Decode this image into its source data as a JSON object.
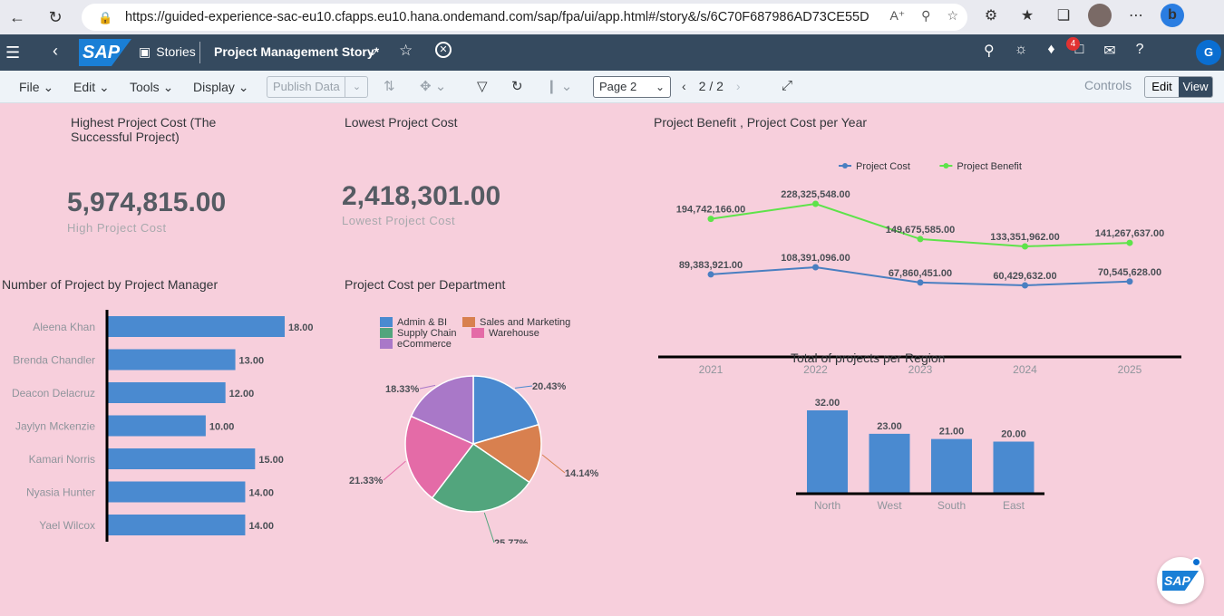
{
  "browser": {
    "url": "https://guided-experience-sac-eu10.cfapps.eu10.hana.ondemand.com/sap/fpa/ui/app.html#/story&/s/6C70F687986AD73CE55DA..."
  },
  "shell": {
    "logo_text": "SAP",
    "stories_label": "Stories",
    "story_title": "Project Management Story*",
    "notification_count": "4",
    "user_initial": "G"
  },
  "toolbar": {
    "file": "File",
    "edit": "Edit",
    "tools": "Tools",
    "display": "Display",
    "publish_data": "Publish Data",
    "page_select": "Page 2",
    "page_counter": "2 / 2",
    "controls": "Controls",
    "edit_btn": "Edit",
    "view_btn": "View"
  },
  "kpis": [
    {
      "title": "Highest Project Cost (The Successful Project)",
      "value": "5,974,815.00",
      "sub": "High Project Cost"
    },
    {
      "title": "Lowest Project Cost",
      "value": "2,418,301.00",
      "sub": "Lowest Project Cost"
    }
  ],
  "chart_data": [
    {
      "type": "line",
      "title": "Project Benefit , Project Cost per Year",
      "x": [
        "2021",
        "2022",
        "2023",
        "2024",
        "2025"
      ],
      "series": [
        {
          "name": "Project Cost",
          "color": "#4a7fc1",
          "values": [
            89383921.0,
            108391096.0,
            67860451.0,
            60429632.0,
            70545628.0
          ],
          "labels": [
            "89,383,921.00",
            "108,391,096.00",
            "67,860,451.00",
            "60,429,632.00",
            "70,545,628.00"
          ]
        },
        {
          "name": "Project Benefit",
          "color": "#5ee34a",
          "values": [
            194742166.0,
            228325548.0,
            149675585.0,
            133351962.0,
            141267637.0
          ],
          "labels": [
            "194,742,166.00",
            "228,325,548.00",
            "149,675,585.00",
            "133,351,962.00",
            "141,267,637.00"
          ]
        }
      ]
    },
    {
      "type": "bar",
      "orientation": "horizontal",
      "title": "Number of Project by Project Manager",
      "categories": [
        "Aleena Khan",
        "Brenda Chandler",
        "Deacon Delacruz",
        "Jaylyn Mckenzie",
        "Kamari Norris",
        "Nyasia Hunter",
        "Yael Wilcox"
      ],
      "values": [
        18,
        13,
        12,
        10,
        15,
        14,
        14
      ],
      "labels": [
        "18.00",
        "13.00",
        "12.00",
        "10.00",
        "15.00",
        "14.00",
        "14.00"
      ],
      "color": "#4a8ad0"
    },
    {
      "type": "pie",
      "title": "Project Cost per Department",
      "legend": [
        "Admin & BI",
        "Sales and Marketing",
        "Supply Chain",
        "Warehouse",
        "eCommerce"
      ],
      "slices": [
        {
          "name": "Admin & BI",
          "value": 20.43,
          "label": "20.43%",
          "color": "#4a8ad0"
        },
        {
          "name": "Sales and Marketing",
          "value": 14.14,
          "label": "14.14%",
          "color": "#d8804f"
        },
        {
          "name": "Supply Chain",
          "value": 25.77,
          "label": "25.77%",
          "color": "#52a57d"
        },
        {
          "name": "Warehouse",
          "value": 21.33,
          "label": "21.33%",
          "color": "#e46ba7"
        },
        {
          "name": "eCommerce",
          "value": 18.33,
          "label": "18.33%",
          "color": "#a978c8"
        }
      ]
    },
    {
      "type": "bar",
      "title": "Total of projects per Region",
      "categories": [
        "North",
        "West",
        "South",
        "East"
      ],
      "values": [
        32,
        23,
        21,
        20
      ],
      "labels": [
        "32.00",
        "23.00",
        "21.00",
        "20.00"
      ],
      "color": "#4a8ad0"
    }
  ]
}
